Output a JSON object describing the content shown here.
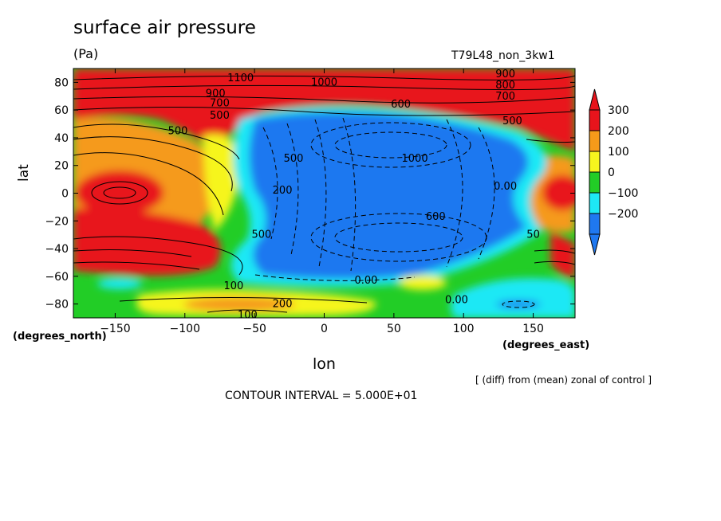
{
  "title": "surface air pressure",
  "units": "(Pa)",
  "run_id": "T79L48_non_3kw1",
  "note": "[ (diff) from (mean) zonal of control ]",
  "contour_interval": "CONTOUR INTERVAL = 5.000E+01",
  "chart_data": {
    "type": "heatmap",
    "xlabel": "lon",
    "ylabel": "lat",
    "x_unit": "(degrees_east)",
    "y_unit": "(degrees_north)",
    "xlim": [
      -180,
      180
    ],
    "ylim": [
      -90,
      90
    ],
    "x_ticks": [
      -150,
      -100,
      -50,
      0,
      50,
      100,
      150
    ],
    "y_ticks": [
      80,
      60,
      40,
      20,
      0,
      -20,
      -40,
      -60,
      -80
    ],
    "colorbar": {
      "levels": [
        "300",
        "200",
        "100",
        "0",
        "−100",
        "−200"
      ],
      "colors": [
        "#e8141c",
        "#f59a1a",
        "#f6f51e",
        "#22cd26",
        "#1ee8f5",
        "#1f78f0"
      ],
      "over_color": "#e8141c",
      "under_color": "#1f78f0"
    },
    "contour_labels": [
      {
        "text": "1100",
        "lon": -60,
        "lat": 83
      },
      {
        "text": "1000",
        "lon": 0,
        "lat": 80
      },
      {
        "text": "900",
        "lon": 130,
        "lat": 86
      },
      {
        "text": "800",
        "lon": 130,
        "lat": 78
      },
      {
        "text": "700",
        "lon": 130,
        "lat": 70
      },
      {
        "text": "600",
        "lon": 55,
        "lat": 64
      },
      {
        "text": "900",
        "lon": -78,
        "lat": 72
      },
      {
        "text": "700",
        "lon": -75,
        "lat": 65
      },
      {
        "text": "500",
        "lon": -75,
        "lat": 56
      },
      {
        "text": "500",
        "lon": 135,
        "lat": 52
      },
      {
        "text": "500",
        "lon": -105,
        "lat": 45
      },
      {
        "text": "1000",
        "lon": 65,
        "lat": 25
      },
      {
        "text": "500",
        "lon": -22,
        "lat": 25
      },
      {
        "text": "200",
        "lon": -30,
        "lat": 2
      },
      {
        "text": "0.00",
        "lon": 130,
        "lat": 5
      },
      {
        "text": "600",
        "lon": 80,
        "lat": -17
      },
      {
        "text": "500",
        "lon": -45,
        "lat": -30
      },
      {
        "text": "50",
        "lon": 150,
        "lat": -30
      },
      {
        "text": "0.00",
        "lon": 30,
        "lat": -63
      },
      {
        "text": "0.00",
        "lon": 95,
        "lat": -77
      },
      {
        "text": "100",
        "lon": -65,
        "lat": -67
      },
      {
        "text": "200",
        "lon": -30,
        "lat": -80
      },
      {
        "text": "100",
        "lon": -55,
        "lat": -88
      }
    ]
  }
}
